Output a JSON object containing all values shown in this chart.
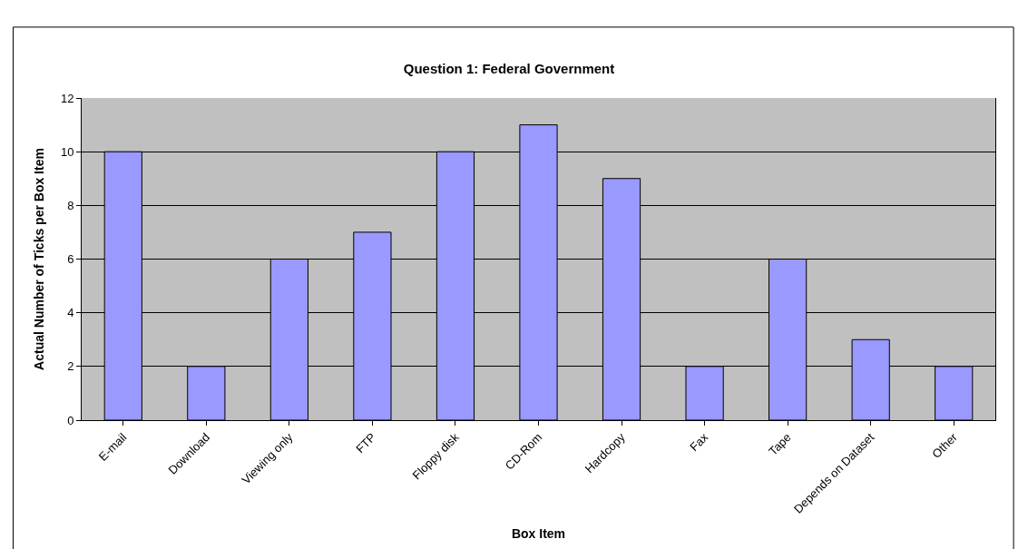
{
  "chart_data": {
    "type": "bar",
    "title": "Question 1: Federal Government",
    "xlabel": "Box Item",
    "ylabel": "Actual Number of Ticks per Box Item",
    "categories": [
      "E-mail",
      "Download",
      "Viewing only",
      "FTP",
      "Floppy disk",
      "CD-Rom",
      "Hardcopy",
      "Fax",
      "Tape",
      "Depends on Dataset",
      "Other"
    ],
    "values": [
      10,
      2,
      6,
      7,
      10,
      11,
      9,
      2,
      6,
      3,
      2
    ],
    "color": "#9999ff",
    "ylim": [
      0,
      12
    ],
    "yticks": [
      0,
      2,
      4,
      6,
      8,
      10,
      12
    ],
    "grid": "y",
    "legend": false
  }
}
